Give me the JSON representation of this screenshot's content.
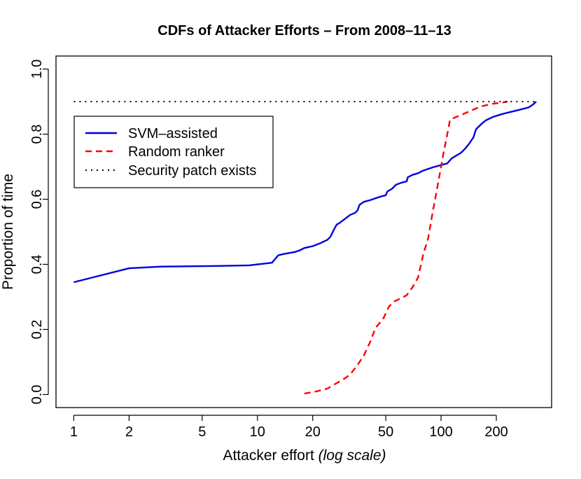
{
  "chart_data": {
    "type": "line",
    "title": "CDFs of Attacker Efforts – From 2008–11–13",
    "xlabel_main": "Attacker effort ",
    "xlabel_italic": "(log scale)",
    "ylabel": "Proportion of time",
    "x_scale": "log",
    "xlim": [
      0.8,
      400
    ],
    "ylim": [
      -0.04,
      1.04
    ],
    "x_ticks": [
      1,
      2,
      5,
      10,
      20,
      50,
      100,
      200
    ],
    "x_tick_labels": [
      "1",
      "2",
      "5",
      "10",
      "20",
      "50",
      "100",
      "200"
    ],
    "y_ticks": [
      0,
      0.2,
      0.4,
      0.6,
      0.8,
      1.0
    ],
    "y_tick_labels": [
      "0.0",
      "0.2",
      "0.4",
      "0.6",
      "0.8",
      "1.0"
    ],
    "grid": false,
    "legend_position": "top-left",
    "series": [
      {
        "name": "SVM–assisted",
        "color": "#0000dd",
        "dash": "solid",
        "points": [
          [
            1,
            0.345
          ],
          [
            2,
            0.388
          ],
          [
            3,
            0.393
          ],
          [
            6,
            0.395
          ],
          [
            9,
            0.397
          ],
          [
            12,
            0.405
          ],
          [
            13,
            0.428
          ],
          [
            14,
            0.432
          ],
          [
            16,
            0.438
          ],
          [
            17,
            0.443
          ],
          [
            18,
            0.45
          ],
          [
            20,
            0.456
          ],
          [
            22,
            0.465
          ],
          [
            24,
            0.475
          ],
          [
            25,
            0.485
          ],
          [
            26,
            0.505
          ],
          [
            27,
            0.522
          ],
          [
            28,
            0.527
          ],
          [
            30,
            0.54
          ],
          [
            32,
            0.552
          ],
          [
            34,
            0.558
          ],
          [
            35,
            0.565
          ],
          [
            36,
            0.583
          ],
          [
            38,
            0.592
          ],
          [
            41,
            0.597
          ],
          [
            45,
            0.605
          ],
          [
            48,
            0.61
          ],
          [
            50,
            0.612
          ],
          [
            51,
            0.624
          ],
          [
            54,
            0.632
          ],
          [
            57,
            0.645
          ],
          [
            62,
            0.652
          ],
          [
            65,
            0.655
          ],
          [
            66,
            0.668
          ],
          [
            70,
            0.675
          ],
          [
            75,
            0.68
          ],
          [
            80,
            0.688
          ],
          [
            90,
            0.698
          ],
          [
            100,
            0.705
          ],
          [
            108,
            0.71
          ],
          [
            114,
            0.725
          ],
          [
            120,
            0.733
          ],
          [
            128,
            0.742
          ],
          [
            135,
            0.755
          ],
          [
            142,
            0.77
          ],
          [
            150,
            0.79
          ],
          [
            155,
            0.815
          ],
          [
            165,
            0.83
          ],
          [
            175,
            0.842
          ],
          [
            190,
            0.852
          ],
          [
            210,
            0.86
          ],
          [
            230,
            0.866
          ],
          [
            260,
            0.873
          ],
          [
            300,
            0.882
          ],
          [
            315,
            0.89
          ],
          [
            330,
            0.9
          ]
        ]
      },
      {
        "name": "Random ranker",
        "color": "#ff0000",
        "dash": "dashed",
        "points": [
          [
            18,
            0.003
          ],
          [
            21,
            0.01
          ],
          [
            24,
            0.018
          ],
          [
            27,
            0.035
          ],
          [
            30,
            0.05
          ],
          [
            32,
            0.062
          ],
          [
            35,
            0.09
          ],
          [
            38,
            0.12
          ],
          [
            41,
            0.16
          ],
          [
            44,
            0.205
          ],
          [
            46,
            0.218
          ],
          [
            48,
            0.228
          ],
          [
            52,
            0.27
          ],
          [
            55,
            0.285
          ],
          [
            60,
            0.295
          ],
          [
            65,
            0.305
          ],
          [
            70,
            0.33
          ],
          [
            75,
            0.36
          ],
          [
            80,
            0.43
          ],
          [
            85,
            0.48
          ],
          [
            90,
            0.56
          ],
          [
            95,
            0.63
          ],
          [
            100,
            0.7
          ],
          [
            103,
            0.74
          ],
          [
            106,
            0.775
          ],
          [
            112,
            0.845
          ],
          [
            120,
            0.852
          ],
          [
            130,
            0.86
          ],
          [
            145,
            0.872
          ],
          [
            165,
            0.885
          ],
          [
            190,
            0.893
          ],
          [
            215,
            0.897
          ],
          [
            230,
            0.9
          ]
        ]
      },
      {
        "name": "Security patch exists",
        "color": "#000000",
        "dash": "dotted",
        "points": [
          [
            1,
            0.9
          ],
          [
            330,
            0.9
          ]
        ]
      }
    ]
  }
}
